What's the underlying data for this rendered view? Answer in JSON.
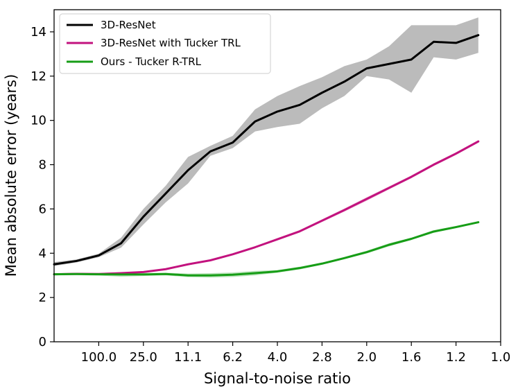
{
  "chart_data": {
    "type": "line",
    "title": "",
    "xlabel": "Signal-to-noise ratio",
    "ylabel": "Mean absolute error (years)",
    "ylim": [
      0,
      15
    ],
    "yticks": [
      0,
      2,
      4,
      6,
      8,
      10,
      12,
      14
    ],
    "xlim": [
      0,
      20
    ],
    "x": [
      0,
      1,
      2,
      3,
      4,
      5,
      6,
      7,
      8,
      9,
      10,
      11,
      12,
      13,
      14,
      15,
      16,
      17,
      18,
      19
    ],
    "xtick_positions": [
      2,
      4,
      6,
      8,
      10,
      12,
      14,
      16,
      18,
      20
    ],
    "xtick_labels": [
      "100.0",
      "25.0",
      "11.1",
      "6.2",
      "4.0",
      "2.8",
      "2.0",
      "1.6",
      "1.2",
      "1.0"
    ],
    "legend_position": "upper-left",
    "series": [
      {
        "name": "3D-ResNet",
        "color": "#000000",
        "band_color": "#bbbbbb",
        "values": [
          3.5,
          3.65,
          3.9,
          4.45,
          5.65,
          6.7,
          7.75,
          8.6,
          9.0,
          9.95,
          10.4,
          10.7,
          11.25,
          11.75,
          12.35,
          12.55,
          12.75,
          13.55,
          13.5,
          13.85
        ],
        "lower": [
          3.42,
          3.58,
          3.82,
          4.25,
          5.3,
          6.3,
          7.15,
          8.4,
          8.75,
          9.5,
          9.7,
          9.85,
          10.55,
          11.1,
          12.0,
          11.85,
          11.25,
          12.85,
          12.75,
          13.05
        ],
        "upper": [
          3.6,
          3.72,
          3.98,
          4.7,
          6.0,
          7.05,
          8.35,
          8.85,
          9.3,
          10.5,
          11.1,
          11.55,
          11.95,
          12.45,
          12.75,
          13.35,
          14.3,
          14.3,
          14.3,
          14.65
        ]
      },
      {
        "name": "3D-ResNet with Tucker TRL",
        "color": "#c2127e",
        "band_color": "#e8a0c8",
        "values": [
          3.05,
          3.07,
          3.06,
          3.1,
          3.15,
          3.28,
          3.5,
          3.68,
          3.95,
          4.27,
          4.63,
          4.99,
          5.47,
          5.95,
          6.45,
          6.95,
          7.45,
          8.0,
          8.5,
          9.05
        ],
        "lower": [
          3.02,
          3.04,
          3.03,
          3.06,
          3.11,
          3.24,
          3.46,
          3.64,
          3.91,
          4.23,
          4.58,
          4.94,
          5.41,
          5.88,
          6.37,
          6.88,
          7.39,
          7.94,
          8.44,
          9.0
        ],
        "upper": [
          3.08,
          3.1,
          3.09,
          3.14,
          3.19,
          3.32,
          3.54,
          3.72,
          3.99,
          4.31,
          4.68,
          5.04,
          5.53,
          6.02,
          6.53,
          7.02,
          7.51,
          8.06,
          8.56,
          9.1
        ]
      },
      {
        "name": "Ours - Tucker R-TRL",
        "color": "#169d16",
        "band_color": "#a6d9a6",
        "values": [
          3.05,
          3.06,
          3.05,
          3.04,
          3.04,
          3.06,
          3.0,
          3.0,
          3.03,
          3.1,
          3.18,
          3.33,
          3.53,
          3.78,
          4.05,
          4.38,
          4.65,
          4.98,
          5.18,
          5.4
        ],
        "lower": [
          3.0,
          3.01,
          2.99,
          2.94,
          2.97,
          3.0,
          2.92,
          2.9,
          2.93,
          3.0,
          3.12,
          3.27,
          3.48,
          3.73,
          3.99,
          4.31,
          4.6,
          4.92,
          5.13,
          5.36
        ],
        "upper": [
          3.1,
          3.11,
          3.11,
          3.14,
          3.11,
          3.12,
          3.08,
          3.1,
          3.13,
          3.2,
          3.24,
          3.39,
          3.58,
          3.83,
          4.11,
          4.45,
          4.7,
          5.04,
          5.23,
          5.44
        ]
      }
    ]
  }
}
